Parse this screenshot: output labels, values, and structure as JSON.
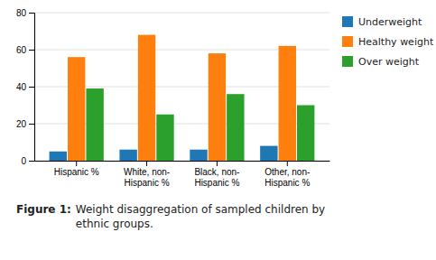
{
  "chart_data": {
    "type": "bar",
    "title": "Figure 1:",
    "subtitle": "Weight disaggregation of sampled children by\nethnic groups.",
    "categories": [
      "Hispanic %",
      "White, non-\nHispanic %",
      "Black, non-\nHispanic %",
      "Other, non-\nHispanic %"
    ],
    "series": [
      {
        "name": "Underweight",
        "values": [
          5,
          6,
          6,
          8
        ]
      },
      {
        "name": "Healthy weight",
        "values": [
          56,
          68,
          58,
          62
        ]
      },
      {
        "name": "Over weight",
        "values": [
          39,
          25,
          36,
          30
        ]
      }
    ],
    "ylim": [
      0,
      80
    ],
    "yticks": [
      0,
      20,
      40,
      60,
      80
    ],
    "grid": true,
    "legend": "right"
  }
}
